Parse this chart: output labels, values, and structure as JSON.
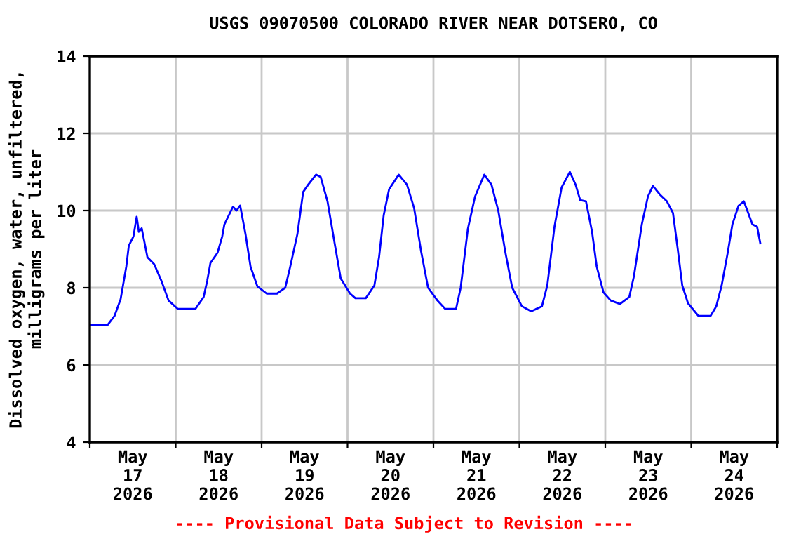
{
  "chart_data": {
    "type": "line",
    "title": "USGS 09070500 COLORADO RIVER NEAR DOTSERO, CO",
    "ylabel": "Dissolved oxygen, water, unfiltered,\nmilligrams per liter",
    "annotations": [
      "---- Provisional Data Subject to Revision ----"
    ],
    "xlim": [
      "2026-05-17T00:00",
      "2026-05-25T00:00"
    ],
    "xticks": [
      {
        "value": "2026-05-17T00:00",
        "label": null
      },
      {
        "value": "2026-05-17T12:00",
        "label": "May\n17\n2026"
      },
      {
        "value": "2026-05-18T00:00",
        "label": null
      },
      {
        "value": "2026-05-18T12:00",
        "label": "May\n18\n2026"
      },
      {
        "value": "2026-05-19T00:00",
        "label": null
      },
      {
        "value": "2026-05-19T12:00",
        "label": "May\n19\n2026"
      },
      {
        "value": "2026-05-20T00:00",
        "label": null
      },
      {
        "value": "2026-05-20T12:00",
        "label": "May\n20\n2026"
      },
      {
        "value": "2026-05-21T00:00",
        "label": null
      },
      {
        "value": "2026-05-21T12:00",
        "label": "May\n21\n2026"
      },
      {
        "value": "2026-05-22T00:00",
        "label": null
      },
      {
        "value": "2026-05-22T12:00",
        "label": "May\n22\n2026"
      },
      {
        "value": "2026-05-23T00:00",
        "label": null
      },
      {
        "value": "2026-05-23T12:00",
        "label": "May\n23\n2026"
      },
      {
        "value": "2026-05-24T00:00",
        "label": null
      },
      {
        "value": "2026-05-24T12:00",
        "label": "May\n24\n2026"
      },
      {
        "value": "2026-05-25T00:00",
        "label": null
      }
    ],
    "ylim": [
      4,
      14
    ],
    "yticks": [
      4,
      6,
      8,
      10,
      12,
      14
    ],
    "grid": true,
    "marker": "none",
    "line_style": "solid",
    "series": [
      {
        "color": "#0000ff",
        "x": [
          "2026-05-17T00:00",
          "2026-05-17T05:00",
          "2026-05-17T06:54",
          "2026-05-17T08:36",
          "2026-05-17T10:12",
          "2026-05-17T10:54",
          "2026-05-17T12:12",
          "2026-05-17T13:06",
          "2026-05-17T13:42",
          "2026-05-17T14:30",
          "2026-05-17T16:06",
          "2026-05-17T18:00",
          "2026-05-17T20:00",
          "2026-05-17T22:00",
          "2026-05-18T00:36",
          "2026-05-18T05:30",
          "2026-05-18T07:48",
          "2026-05-18T08:48",
          "2026-05-18T09:42",
          "2026-05-18T11:42",
          "2026-05-18T13:00",
          "2026-05-18T13:36",
          "2026-05-18T16:00",
          "2026-05-18T17:00",
          "2026-05-18T18:00",
          "2026-05-18T19:30",
          "2026-05-18T20:54",
          "2026-05-18T22:48",
          "2026-05-19T01:24",
          "2026-05-19T04:18",
          "2026-05-19T06:36",
          "2026-05-19T08:00",
          "2026-05-19T10:00",
          "2026-05-19T11:36",
          "2026-05-19T13:00",
          "2026-05-19T15:12",
          "2026-05-19T16:30",
          "2026-05-19T18:24",
          "2026-05-19T20:24",
          "2026-05-19T22:06",
          "2026-05-20T00:42",
          "2026-05-20T02:12",
          "2026-05-20T05:06",
          "2026-05-20T07:30",
          "2026-05-20T08:48",
          "2026-05-20T10:06",
          "2026-05-20T11:36",
          "2026-05-20T14:18",
          "2026-05-20T16:36",
          "2026-05-20T18:36",
          "2026-05-20T20:30",
          "2026-05-20T22:30",
          "2026-05-21T01:06",
          "2026-05-21T03:18",
          "2026-05-21T06:18",
          "2026-05-21T07:36",
          "2026-05-21T09:36",
          "2026-05-21T11:36",
          "2026-05-21T14:12",
          "2026-05-21T16:12",
          "2026-05-21T18:06",
          "2026-05-21T20:06",
          "2026-05-21T22:00",
          "2026-05-22T00:42",
          "2026-05-22T03:18",
          "2026-05-22T06:18",
          "2026-05-22T07:48",
          "2026-05-22T09:48",
          "2026-05-22T11:48",
          "2026-05-22T14:06",
          "2026-05-22T15:42",
          "2026-05-22T17:00",
          "2026-05-22T18:36",
          "2026-05-22T20:18",
          "2026-05-22T21:36",
          "2026-05-22T23:30",
          "2026-05-23T01:30",
          "2026-05-23T04:06",
          "2026-05-23T06:42",
          "2026-05-23T08:00",
          "2026-05-23T09:18",
          "2026-05-23T10:12",
          "2026-05-23T11:54",
          "2026-05-23T13:18",
          "2026-05-23T15:12",
          "2026-05-23T17:12",
          "2026-05-23T18:54",
          "2026-05-23T20:12",
          "2026-05-23T21:30",
          "2026-05-23T23:06",
          "2026-05-24T02:00",
          "2026-05-24T05:24",
          "2026-05-24T07:00",
          "2026-05-24T08:30",
          "2026-05-24T10:12",
          "2026-05-24T11:30",
          "2026-05-24T13:12",
          "2026-05-24T14:42",
          "2026-05-24T17:06",
          "2026-05-24T18:24",
          "2026-05-24T19:18"
        ],
        "values": [
          7.04,
          7.04,
          7.27,
          7.7,
          8.55,
          9.09,
          9.33,
          9.84,
          9.45,
          9.54,
          8.79,
          8.61,
          8.18,
          7.67,
          7.45,
          7.45,
          7.76,
          8.18,
          8.64,
          8.91,
          9.33,
          9.64,
          10.1,
          10.0,
          10.13,
          9.39,
          8.55,
          8.04,
          7.85,
          7.85,
          8.0,
          8.55,
          9.39,
          10.48,
          10.67,
          10.93,
          10.87,
          10.24,
          9.15,
          8.24,
          7.85,
          7.73,
          7.73,
          8.06,
          8.79,
          9.88,
          10.55,
          10.93,
          10.67,
          10.06,
          8.97,
          8.0,
          7.67,
          7.45,
          7.45,
          8.0,
          9.52,
          10.36,
          10.93,
          10.67,
          10.0,
          8.91,
          8.0,
          7.52,
          7.39,
          7.52,
          8.06,
          9.58,
          10.6,
          11.0,
          10.67,
          10.27,
          10.24,
          9.45,
          8.55,
          7.88,
          7.67,
          7.58,
          7.76,
          8.3,
          9.09,
          9.64,
          10.36,
          10.64,
          10.42,
          10.24,
          9.94,
          9.03,
          8.06,
          7.6,
          7.27,
          7.27,
          7.52,
          8.06,
          8.91,
          9.64,
          10.12,
          10.24,
          9.64,
          9.58,
          9.15
        ]
      }
    ]
  }
}
